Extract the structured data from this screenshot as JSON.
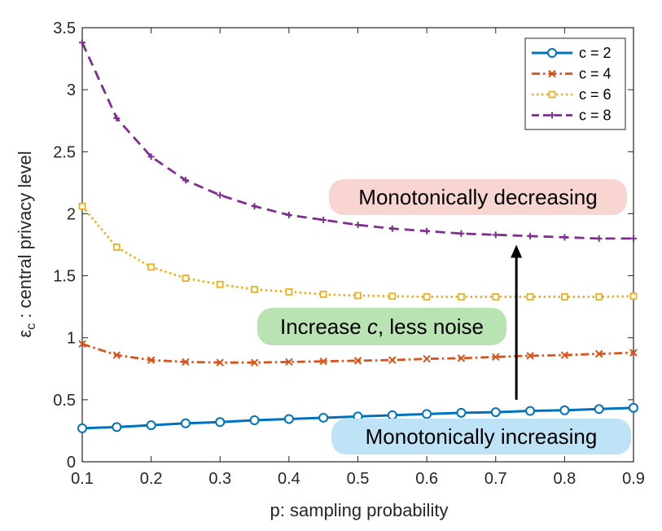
{
  "chart_data": {
    "type": "line",
    "title": "",
    "xlabel": "p: sampling probability",
    "ylabel": "ε_c : central privacy level",
    "ylabel_parts": {
      "symbol": "ε",
      "subscript": "c",
      "rest": ": central privacy level"
    },
    "xlim": [
      0.1,
      0.9
    ],
    "ylim": [
      0,
      3.5
    ],
    "xticks": [
      0.1,
      0.2,
      0.3,
      0.4,
      0.5,
      0.6,
      0.7,
      0.8,
      0.9
    ],
    "xtick_labels": [
      "0.1",
      "0.2",
      "0.3",
      "0.4",
      "0.5",
      "0.6",
      "0.7",
      "0.8",
      "0.9"
    ],
    "yticks": [
      0,
      0.5,
      1,
      1.5,
      2,
      2.5,
      3,
      3.5
    ],
    "ytick_labels": [
      "0",
      "0.5",
      "1",
      "1.5",
      "2",
      "2.5",
      "3",
      "3.5"
    ],
    "grid": false,
    "legend_position": "top-right",
    "x": [
      0.1,
      0.15,
      0.2,
      0.25,
      0.3,
      0.35,
      0.4,
      0.45,
      0.5,
      0.55,
      0.6,
      0.65,
      0.7,
      0.75,
      0.8,
      0.85,
      0.9
    ],
    "series": [
      {
        "name": "c = 2",
        "color": "#0072BD",
        "line_style": "solid",
        "marker": "circle",
        "values": [
          0.27,
          0.28,
          0.295,
          0.31,
          0.32,
          0.335,
          0.345,
          0.355,
          0.365,
          0.375,
          0.385,
          0.395,
          0.4,
          0.41,
          0.415,
          0.425,
          0.435
        ]
      },
      {
        "name": "c = 4",
        "color": "#D95319",
        "line_style": "dashdot",
        "marker": "x",
        "values": [
          0.95,
          0.86,
          0.82,
          0.805,
          0.8,
          0.8,
          0.805,
          0.81,
          0.815,
          0.82,
          0.83,
          0.835,
          0.845,
          0.855,
          0.86,
          0.87,
          0.88
        ]
      },
      {
        "name": "c = 6",
        "color": "#EDB120",
        "line_style": "dotted",
        "marker": "square",
        "values": [
          2.06,
          1.73,
          1.57,
          1.48,
          1.43,
          1.39,
          1.37,
          1.35,
          1.34,
          1.335,
          1.33,
          1.33,
          1.33,
          1.33,
          1.33,
          1.33,
          1.335
        ]
      },
      {
        "name": "c = 8",
        "color": "#7E2F8E",
        "line_style": "dashed",
        "marker": "plus",
        "values": [
          3.38,
          2.77,
          2.46,
          2.27,
          2.15,
          2.06,
          1.99,
          1.95,
          1.91,
          1.88,
          1.86,
          1.84,
          1.83,
          1.82,
          1.81,
          1.8,
          1.8
        ]
      }
    ],
    "annotations": [
      {
        "text": "Monotonically decreasing",
        "bg": "#F9D5D1"
      },
      {
        "text": "Monotonically increasing",
        "bg": "#BFE3F6"
      },
      {
        "text_before": "Increase ",
        "text_italic": "c",
        "text_after": ", less noise",
        "bg": "#B9E3B2"
      }
    ],
    "arrow": {
      "x": 0.73,
      "y_from": 0.5,
      "y_to": 1.75,
      "color": "#000000"
    }
  }
}
